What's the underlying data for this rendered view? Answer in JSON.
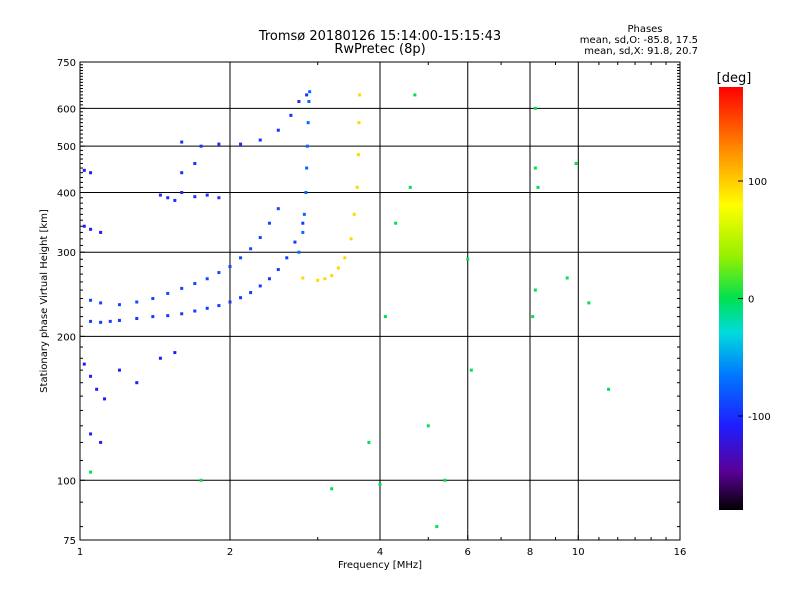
{
  "chart_data": {
    "type": "scatter",
    "title": "Tromsø 20180126 15:14:00-15:15:43",
    "subtitle": "RwPretec (8p)",
    "xlabel": "Frequency [MHz]",
    "ylabel": "Stationary phase Virtual Height [km]",
    "x_scale": "log",
    "y_scale": "log",
    "xlim": [
      1,
      16
    ],
    "ylim": [
      75,
      750
    ],
    "x_ticks": [
      1,
      2,
      4,
      6,
      8,
      10,
      16
    ],
    "x_tick_labels": [
      "1",
      "2",
      "4",
      "6",
      "8",
      "10",
      "16"
    ],
    "y_ticks": [
      75,
      100,
      200,
      300,
      400,
      500,
      600,
      750
    ],
    "y_tick_labels": [
      "75",
      "100",
      "200",
      "300",
      "400",
      "500",
      "600",
      "750"
    ],
    "grid": true,
    "stats": {
      "heading": "Phases",
      "line_o": "mean, sd,O: -85.8, 17.5",
      "line_x": "mean, sd,X:  91.8, 20.7"
    },
    "colorbar": {
      "label": "[deg]",
      "range": [
        -180,
        180
      ],
      "ticks": [
        100,
        0,
        -100
      ],
      "tick_labels": [
        "100",
        "0",
        "-100"
      ],
      "colormap": "rainbow"
    },
    "series": [
      {
        "trace": "o_mode_lower",
        "phase_deg": -95,
        "points": [
          [
            1.05,
            215
          ],
          [
            1.1,
            214
          ],
          [
            1.15,
            215
          ],
          [
            1.2,
            216
          ],
          [
            1.3,
            218
          ],
          [
            1.4,
            220
          ],
          [
            1.5,
            221
          ],
          [
            1.6,
            223
          ],
          [
            1.7,
            226
          ],
          [
            1.8,
            229
          ],
          [
            1.9,
            232
          ],
          [
            2.0,
            236
          ],
          [
            2.1,
            241
          ],
          [
            2.2,
            247
          ],
          [
            2.3,
            255
          ],
          [
            2.4,
            264
          ],
          [
            2.5,
            276
          ],
          [
            2.6,
            292
          ],
          [
            2.7,
            315
          ],
          [
            2.8,
            345
          ]
        ]
      },
      {
        "trace": "o_mode_upper",
        "phase_deg": -88,
        "points": [
          [
            1.05,
            238
          ],
          [
            1.1,
            235
          ],
          [
            1.2,
            233
          ],
          [
            1.3,
            236
          ],
          [
            1.4,
            240
          ],
          [
            1.5,
            246
          ],
          [
            1.6,
            252
          ],
          [
            1.7,
            258
          ],
          [
            1.8,
            264
          ],
          [
            1.9,
            272
          ],
          [
            2.0,
            280
          ],
          [
            2.1,
            292
          ],
          [
            2.2,
            305
          ],
          [
            2.3,
            322
          ],
          [
            2.4,
            345
          ],
          [
            2.5,
            370
          ]
        ]
      },
      {
        "trace": "o_mode_cusp",
        "phase_deg": -72,
        "points": [
          [
            2.75,
            300
          ],
          [
            2.8,
            330
          ],
          [
            2.82,
            360
          ],
          [
            2.84,
            400
          ],
          [
            2.85,
            450
          ],
          [
            2.86,
            500
          ],
          [
            2.87,
            560
          ],
          [
            2.88,
            620
          ],
          [
            2.89,
            650
          ]
        ]
      },
      {
        "trace": "o_mode_multiple_hop",
        "phase_deg": -100,
        "points": [
          [
            2.1,
            505
          ],
          [
            2.3,
            515
          ],
          [
            2.5,
            540
          ],
          [
            2.65,
            580
          ],
          [
            2.75,
            620
          ],
          [
            2.85,
            640
          ]
        ]
      },
      {
        "trace": "x_mode",
        "phase_deg": 95,
        "points": [
          [
            2.8,
            265
          ],
          [
            3.0,
            262
          ],
          [
            3.1,
            264
          ],
          [
            3.2,
            268
          ],
          [
            3.3,
            278
          ],
          [
            3.4,
            292
          ],
          [
            3.5,
            320
          ],
          [
            3.55,
            360
          ],
          [
            3.6,
            410
          ],
          [
            3.62,
            480
          ],
          [
            3.63,
            560
          ],
          [
            3.64,
            640
          ]
        ]
      },
      {
        "trace": "o_mode_cluster_400",
        "phase_deg": -100,
        "points": [
          [
            1.45,
            395
          ],
          [
            1.5,
            390
          ],
          [
            1.55,
            385
          ],
          [
            1.6,
            400
          ],
          [
            1.7,
            392
          ],
          [
            1.8,
            395
          ],
          [
            1.9,
            390
          ],
          [
            1.6,
            510
          ],
          [
            1.75,
            500
          ],
          [
            1.9,
            505
          ],
          [
            1.6,
            440
          ],
          [
            1.7,
            460
          ]
        ]
      },
      {
        "trace": "low_frequency_echoes",
        "phase_deg": -110,
        "points": [
          [
            1.02,
            175
          ],
          [
            1.05,
            165
          ],
          [
            1.08,
            155
          ],
          [
            1.12,
            148
          ],
          [
            1.2,
            170
          ],
          [
            1.3,
            160
          ],
          [
            1.45,
            180
          ],
          [
            1.55,
            185
          ],
          [
            1.05,
            125
          ],
          [
            1.1,
            120
          ],
          [
            1.02,
            340
          ],
          [
            1.05,
            335
          ],
          [
            1.1,
            330
          ],
          [
            1.02,
            445
          ],
          [
            1.05,
            440
          ]
        ]
      },
      {
        "trace": "scattered_noise",
        "phase_deg": 0,
        "points": [
          [
            8.2,
            600
          ],
          [
            8.2,
            450
          ],
          [
            8.3,
            410
          ],
          [
            8.2,
            250
          ],
          [
            8.1,
            220
          ],
          [
            9.5,
            265
          ],
          [
            9.9,
            460
          ],
          [
            10.5,
            235
          ],
          [
            11.5,
            155
          ],
          [
            4.1,
            220
          ],
          [
            4.3,
            345
          ],
          [
            4.6,
            410
          ],
          [
            4.7,
            640
          ],
          [
            5.0,
            130
          ],
          [
            5.2,
            80
          ],
          [
            5.4,
            100
          ],
          [
            6.0,
            290
          ],
          [
            6.1,
            170
          ],
          [
            3.8,
            120
          ],
          [
            4.0,
            98
          ],
          [
            3.2,
            96
          ],
          [
            1.75,
            100
          ],
          [
            1.05,
            104
          ]
        ]
      }
    ]
  }
}
